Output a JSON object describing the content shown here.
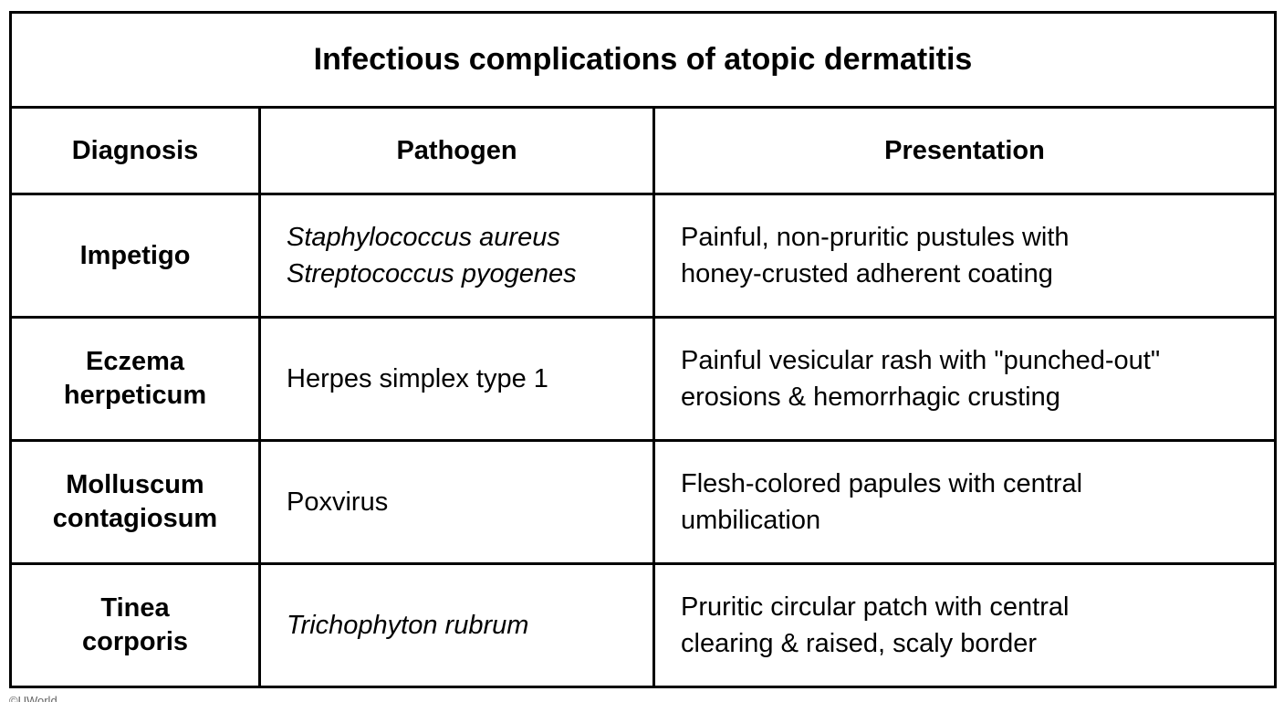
{
  "table": {
    "title": "Infectious complications of atopic dermatitis",
    "headers": [
      "Diagnosis",
      "Pathogen",
      "Presentation"
    ],
    "rows": [
      {
        "diagnosis": [
          "Impetigo"
        ],
        "pathogen": [
          "Staphylococcus aureus",
          "Streptococcus pyogenes"
        ],
        "pathogen_italic": true,
        "presentation": [
          "Painful, non-pruritic pustules with",
          "honey-crusted adherent coating"
        ]
      },
      {
        "diagnosis": [
          "Eczema",
          "herpeticum"
        ],
        "pathogen": [
          "Herpes simplex type 1"
        ],
        "pathogen_italic": false,
        "presentation": [
          "Painful vesicular rash with \"punched-out\"",
          "erosions & hemorrhagic crusting"
        ]
      },
      {
        "diagnosis": [
          "Molluscum",
          "contagiosum"
        ],
        "pathogen": [
          "Poxvirus"
        ],
        "pathogen_italic": false,
        "presentation": [
          "Flesh-colored papules with central",
          "umbilication"
        ]
      },
      {
        "diagnosis": [
          "Tinea",
          "corporis"
        ],
        "pathogen": [
          "Trichophyton rubrum"
        ],
        "pathogen_italic": true,
        "presentation": [
          "Pruritic circular patch with central",
          "clearing & raised, scaly border"
        ]
      }
    ]
  },
  "footer": {
    "credit": "©UWorld"
  },
  "colors": {
    "border": "#000000",
    "background": "#ffffff",
    "text": "#000000"
  }
}
